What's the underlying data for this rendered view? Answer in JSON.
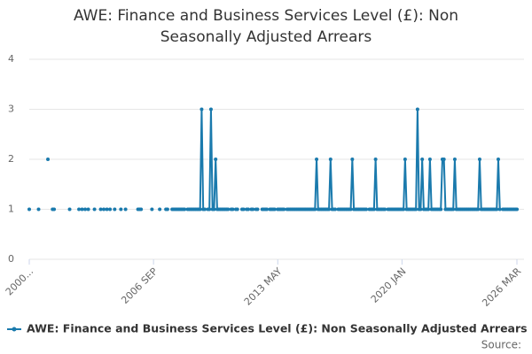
{
  "chart_data": {
    "type": "line",
    "title": "AWE: Finance and Business Services Level (£): Non Seasonally Adjusted Arrears",
    "source": "Source:",
    "categories": [
      "2000...",
      null,
      null,
      null,
      null,
      null,
      null,
      null,
      null,
      null,
      null,
      null,
      null,
      null,
      null,
      null,
      null,
      null,
      null,
      null,
      null,
      null,
      null,
      null,
      null,
      null,
      null,
      null,
      null,
      null,
      null,
      null,
      null,
      null,
      null,
      null,
      null,
      null,
      null,
      null,
      null,
      null,
      null,
      null,
      null,
      null,
      null,
      null,
      null,
      null,
      null,
      null,
      null,
      null,
      null,
      null,
      null,
      null,
      null,
      null,
      null,
      null,
      null,
      null,
      null,
      null,
      null,
      null,
      null,
      null,
      null,
      null,
      null,
      null,
      null,
      null,
      null,
      null,
      null,
      null,
      "2006 SEP",
      null,
      null,
      null,
      null,
      null,
      null,
      null,
      null,
      null,
      null,
      null,
      null,
      null,
      null,
      null,
      null,
      null,
      null,
      null,
      null,
      null,
      null,
      null,
      null,
      null,
      null,
      null,
      null,
      null,
      null,
      null,
      null,
      null,
      null,
      null,
      null,
      null,
      null,
      null,
      null,
      null,
      null,
      null,
      null,
      null,
      null,
      null,
      null,
      null,
      null,
      null,
      null,
      null,
      null,
      null,
      null,
      null,
      null,
      null,
      null,
      null,
      null,
      null,
      null,
      null,
      null,
      null,
      null,
      null,
      null,
      null,
      null,
      null,
      null,
      null,
      null,
      null,
      null,
      null,
      "2013 MAY",
      null,
      null,
      null,
      null,
      null,
      null,
      null,
      null,
      null,
      null,
      null,
      null,
      null,
      null,
      null,
      null,
      null,
      null,
      null,
      null,
      null,
      null,
      null,
      null,
      null,
      null,
      null,
      null,
      null,
      null,
      null,
      null,
      null,
      null,
      null,
      null,
      null,
      null,
      null,
      null,
      null,
      null,
      null,
      null,
      null,
      null,
      null,
      null,
      null,
      null,
      null,
      null,
      null,
      null,
      null,
      null,
      null,
      null,
      null,
      null,
      null,
      null,
      null,
      null,
      null,
      null,
      null,
      null,
      null,
      null,
      null,
      null,
      null,
      null,
      null,
      null,
      null,
      null,
      null,
      "2020 JAN",
      null,
      null,
      null,
      null,
      null,
      null,
      null,
      null,
      null,
      null,
      null,
      null,
      null,
      null,
      null,
      null,
      null,
      null,
      null,
      null,
      null,
      null,
      null,
      null,
      null,
      null,
      null,
      null,
      null,
      null,
      null,
      null,
      null,
      null,
      null,
      null,
      null,
      null,
      null,
      null,
      null,
      null,
      null,
      null,
      null,
      null,
      null,
      null,
      null,
      null,
      null,
      null,
      null,
      null,
      null,
      null,
      null,
      null,
      null,
      null,
      null,
      null,
      null,
      null,
      null,
      null,
      null,
      null,
      null,
      null,
      null,
      null,
      null,
      "2026 MAR"
    ],
    "series": [
      {
        "name": "AWE: Finance and Business Services Level (£): Non Seasonally Adjusted Arrears",
        "color": "#1a7aad",
        "values": [
          1,
          null,
          null,
          null,
          null,
          null,
          1,
          null,
          null,
          null,
          null,
          null,
          2,
          null,
          null,
          1,
          1,
          null,
          null,
          null,
          null,
          null,
          null,
          null,
          null,
          null,
          1,
          null,
          null,
          null,
          null,
          null,
          1,
          null,
          1,
          null,
          1,
          null,
          1,
          null,
          null,
          null,
          1,
          null,
          null,
          null,
          1,
          null,
          1,
          null,
          1,
          null,
          1,
          null,
          null,
          1,
          null,
          null,
          null,
          1,
          null,
          null,
          1,
          null,
          null,
          null,
          null,
          null,
          null,
          null,
          1,
          1,
          1,
          null,
          null,
          null,
          null,
          null,
          null,
          1,
          null,
          null,
          null,
          null,
          1,
          null,
          null,
          null,
          1,
          1,
          null,
          null,
          1,
          1,
          1,
          1,
          1,
          1,
          1,
          1,
          1,
          null,
          1,
          1,
          1,
          1,
          1,
          1,
          1,
          1,
          1,
          3,
          1,
          1,
          null,
          1,
          1,
          3,
          1,
          1,
          2,
          1,
          1,
          1,
          1,
          1,
          1,
          1,
          1,
          null,
          1,
          1,
          null,
          1,
          1,
          null,
          null,
          1,
          1,
          null,
          1,
          1,
          null,
          1,
          1,
          null,
          1,
          1,
          null,
          null,
          1,
          1,
          1,
          1,
          null,
          1,
          1,
          1,
          1,
          null,
          1,
          1,
          1,
          1,
          1,
          null,
          1,
          1,
          1,
          1,
          1,
          1,
          1,
          1,
          1,
          1,
          1,
          1,
          1,
          1,
          1,
          1,
          1,
          1,
          1,
          2,
          1,
          1,
          1,
          1,
          1,
          1,
          1,
          1,
          2,
          1,
          1,
          1,
          null,
          1,
          1,
          1,
          1,
          1,
          1,
          1,
          1,
          1,
          2,
          1,
          1,
          1,
          1,
          1,
          1,
          1,
          1,
          1,
          null,
          1,
          1,
          1,
          1,
          2,
          1,
          1,
          1,
          1,
          1,
          1,
          null,
          1,
          1,
          1,
          1,
          1,
          1,
          1,
          1,
          1,
          1,
          1,
          2,
          1,
          1,
          1,
          1,
          1,
          1,
          1,
          3,
          1,
          1,
          2,
          1,
          1,
          1,
          1,
          2,
          1,
          1,
          1,
          1,
          1,
          1,
          1,
          2,
          2,
          1,
          1,
          1,
          1,
          1,
          1,
          2,
          1,
          1,
          1,
          1,
          1,
          1,
          1,
          1,
          1,
          1,
          1,
          1,
          1,
          1,
          1,
          2,
          1,
          1,
          1,
          1,
          1,
          1,
          1,
          1,
          1,
          1,
          1,
          2,
          1,
          null,
          1,
          1,
          1,
          1,
          1,
          1,
          1,
          1,
          1,
          1
        ]
      }
    ],
    "ylim": [
      0,
      4
    ],
    "yticks": [
      0,
      1,
      2,
      3,
      4
    ],
    "grid": true
  }
}
